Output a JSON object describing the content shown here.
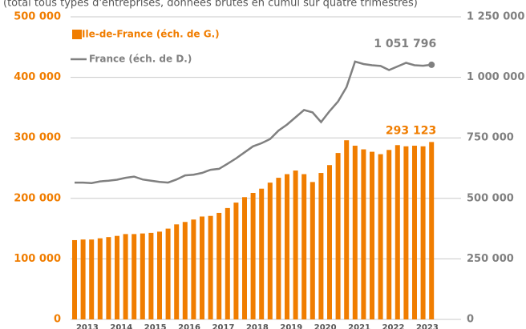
{
  "chart_data": {
    "type": "bar-line",
    "subtitle": "(total tous types d'entreprises, données brutes en cumul sur quatre trimestres)",
    "categories": [
      null,
      "2013",
      null,
      null,
      null,
      "2014",
      null,
      null,
      null,
      "2015",
      null,
      null,
      null,
      "2016",
      null,
      null,
      null,
      "2017",
      null,
      null,
      null,
      "2018",
      null,
      null,
      null,
      "2019",
      null,
      null,
      null,
      "2020",
      null,
      null,
      null,
      "2021",
      null,
      null,
      null,
      "2022",
      null,
      null,
      null,
      "2023",
      null
    ],
    "series": [
      {
        "name": "Ile-de-France (éch. de G.)",
        "type": "bar",
        "axis": "y",
        "color": "#f07d00",
        "values": [
          131000,
          132000,
          132000,
          134000,
          136000,
          138000,
          141000,
          141000,
          142000,
          143000,
          145000,
          150000,
          157000,
          161000,
          165000,
          170000,
          171000,
          176000,
          184000,
          193000,
          202000,
          209000,
          216000,
          226000,
          234000,
          240000,
          246000,
          240000,
          227000,
          242000,
          255000,
          275000,
          296000,
          287000,
          281000,
          277000,
          273000,
          280000,
          288000,
          286000,
          287000,
          286000,
          293123
        ],
        "value_labels": {
          "42": "293 123"
        }
      },
      {
        "name": "France (éch. de D.)",
        "type": "line",
        "axis": "y2",
        "color": "#808080",
        "values": [
          565000,
          565000,
          563000,
          570000,
          573000,
          577000,
          585000,
          590000,
          578000,
          573000,
          568000,
          565000,
          578000,
          595000,
          598000,
          605000,
          618000,
          622000,
          643000,
          665000,
          690000,
          715000,
          728000,
          745000,
          780000,
          805000,
          835000,
          865000,
          855000,
          815000,
          860000,
          900000,
          960000,
          1065000,
          1055000,
          1050000,
          1047000,
          1030000,
          1045000,
          1060000,
          1050000,
          1048000,
          1051796
        ],
        "value_labels": {
          "42": "1 051 796"
        }
      }
    ],
    "ylim": [
      0,
      500000
    ],
    "yticks": [
      0,
      {
        "value": 100000,
        "label": "100 000"
      },
      {
        "value": 200000,
        "label": "200 000"
      },
      {
        "value": 300000,
        "label": "300 000"
      },
      {
        "value": 400000,
        "label": "400 000"
      },
      {
        "value": 500000,
        "label": "500 000"
      }
    ],
    "y2lim": [
      0,
      1250000
    ],
    "y2ticks": [
      0,
      {
        "value": 250000,
        "label": "250 000"
      },
      {
        "value": 500000,
        "label": "500 000"
      },
      {
        "value": 750000,
        "label": "750 000"
      },
      {
        "value": 1000000,
        "label": "1 000 000"
      },
      {
        "value": 1250000,
        "label": "1 250 000"
      }
    ],
    "grid": true
  }
}
